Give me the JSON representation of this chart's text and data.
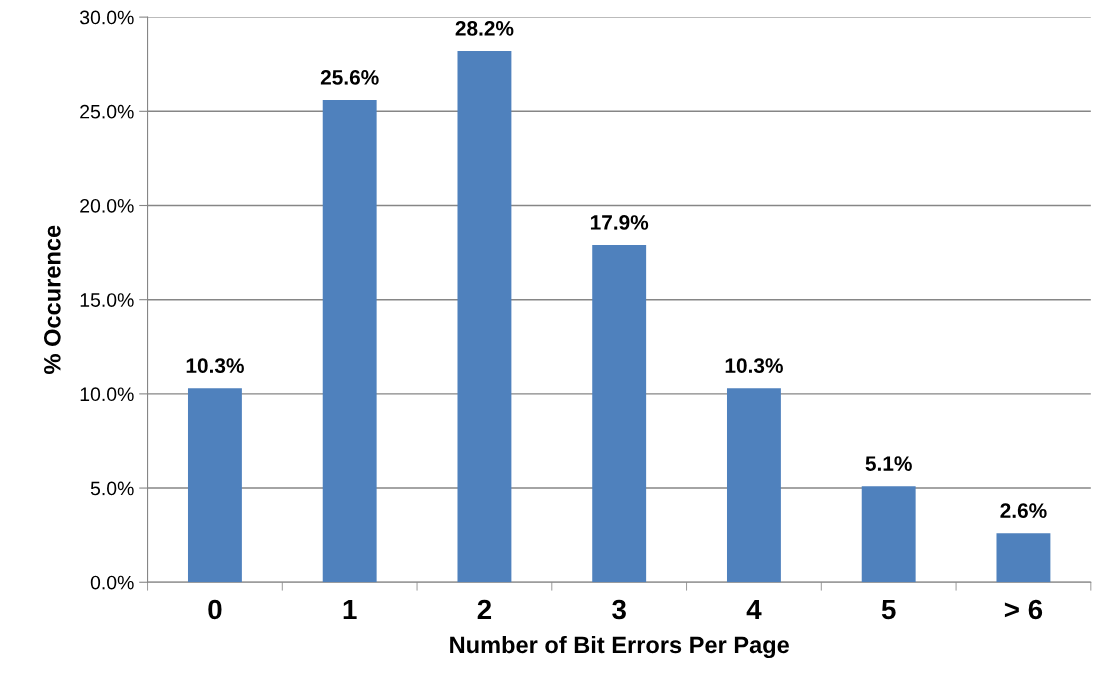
{
  "chart_data": {
    "type": "bar",
    "xlabel": "Number of Bit Errors Per Page",
    "ylabel": "% Occurence",
    "categories": [
      "0",
      "1",
      "2",
      "3",
      "4",
      "5",
      "> 6"
    ],
    "values": [
      10.3,
      25.6,
      28.2,
      17.9,
      10.3,
      5.1,
      2.6
    ],
    "value_labels": [
      "10.3%",
      "25.6%",
      "28.2%",
      "17.9%",
      "10.3%",
      "5.1%",
      "2.6%"
    ],
    "color": "#4f81bd",
    "ylim": [
      0,
      30
    ],
    "yticks": [
      {
        "value": 0,
        "label": "0.0%"
      },
      {
        "value": 5,
        "label": "5.0%"
      },
      {
        "value": 10,
        "label": "10.0%"
      },
      {
        "value": 15,
        "label": "15.0%"
      },
      {
        "value": 20,
        "label": "20.0%"
      },
      {
        "value": 25,
        "label": "25.0%"
      },
      {
        "value": 30,
        "label": "30.0%"
      }
    ],
    "grid": "y",
    "legend": false
  }
}
